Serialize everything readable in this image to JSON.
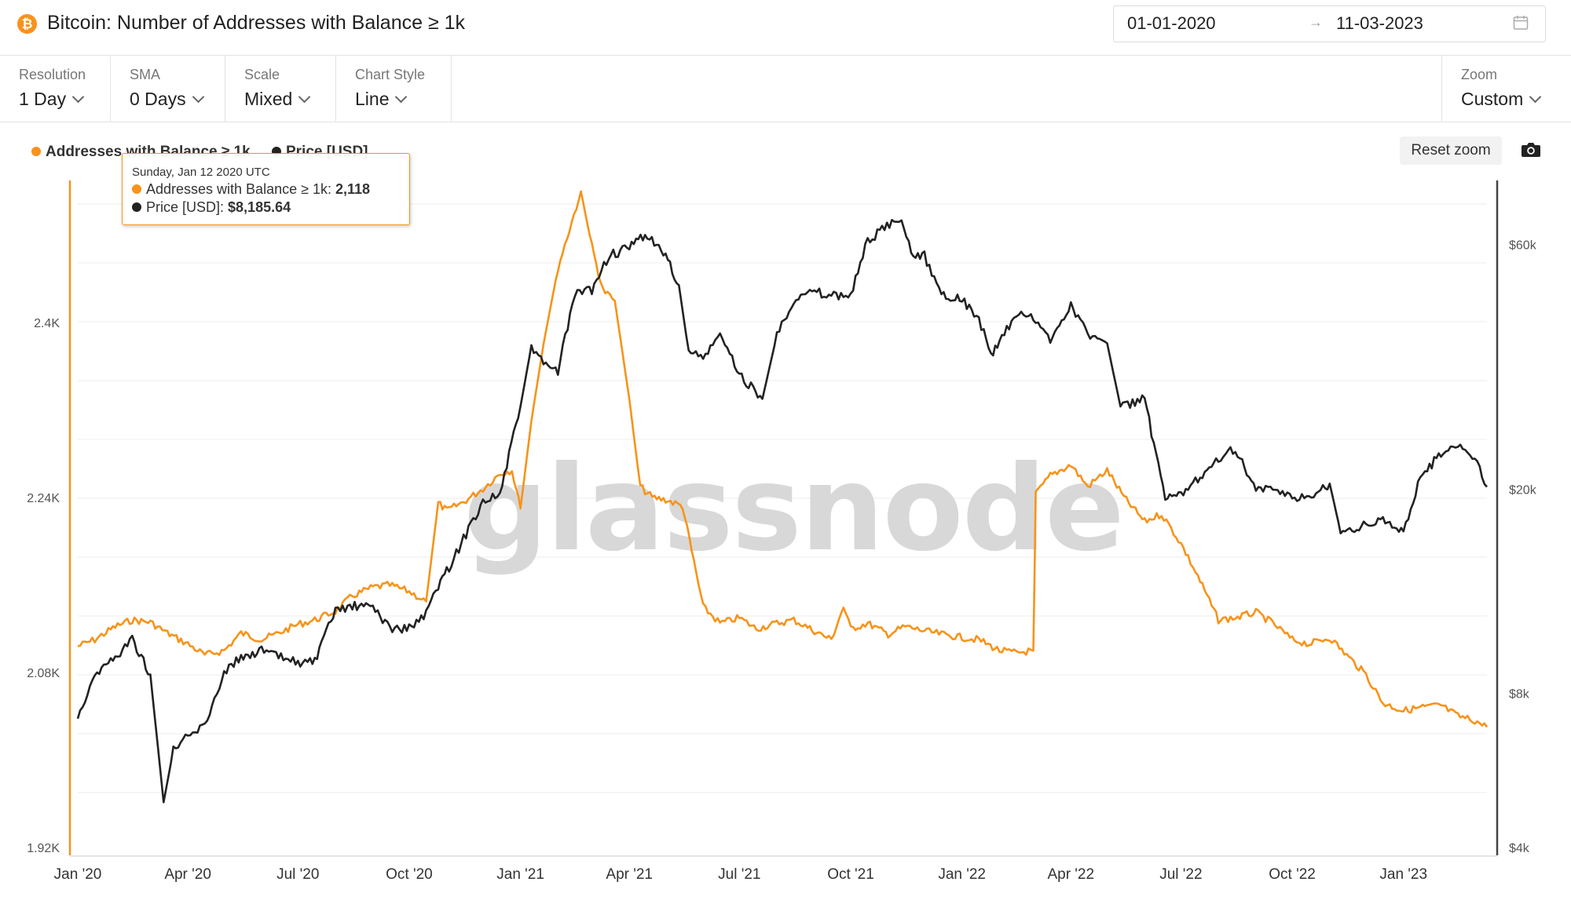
{
  "header": {
    "icon_glyph": "₿",
    "title": "Bitcoin: Number of Addresses with Balance ≥ 1k",
    "date_start": "01-01-2020",
    "date_arrow": "→",
    "date_end": "11-03-2023",
    "calendar_icon": "calendar-icon"
  },
  "toolbar": {
    "controls": [
      {
        "label": "Resolution",
        "value": "1 Day"
      },
      {
        "label": "SMA",
        "value": "0 Days"
      },
      {
        "label": "Scale",
        "value": "Mixed"
      },
      {
        "label": "Chart Style",
        "value": "Line"
      }
    ],
    "zoom": {
      "label": "Zoom",
      "value": "Custom"
    }
  },
  "legend": {
    "addresses": "Addresses with Balance ≥ 1k",
    "price": "Price [USD]"
  },
  "buttons": {
    "reset_zoom": "Reset zoom",
    "camera_icon": "camera-icon"
  },
  "tooltip": {
    "date": "Sunday, Jan 12 2020 UTC",
    "addresses_label": "Addresses with Balance ≥ 1k: ",
    "addresses_value": "2,118",
    "price_label": "Price [USD]: ",
    "price_value": "$8,185.64"
  },
  "watermark": "glassnode",
  "colors": {
    "addresses": "#f7931a",
    "price": "#222222"
  },
  "chart_data": {
    "type": "line",
    "x_axis": {
      "ticks": [
        "Jan '20",
        "Apr '20",
        "Jul '20",
        "Oct '20",
        "Jan '21",
        "Apr '21",
        "Jul '21",
        "Oct '21",
        "Jan '22",
        "Apr '22",
        "Jul '22",
        "Oct '22",
        "Jan '23"
      ]
    },
    "y_left": {
      "ticks": [
        "1.92K",
        "2.08K",
        "2.24K",
        "2.4K"
      ],
      "range": [
        1920,
        2530
      ]
    },
    "y_right": {
      "scale": "log",
      "ticks": [
        "$4k",
        "$8k",
        "$20k",
        "$60k"
      ],
      "range": [
        4000,
        80000
      ]
    },
    "series": [
      {
        "name": "Addresses with Balance ≥ 1k",
        "axis": "left",
        "points": [
          [
            "2020-01-01",
            2104
          ],
          [
            "2020-01-15",
            2110
          ],
          [
            "2020-02-01",
            2122
          ],
          [
            "2020-02-15",
            2128
          ],
          [
            "2020-03-01",
            2126
          ],
          [
            "2020-03-15",
            2116
          ],
          [
            "2020-04-01",
            2106
          ],
          [
            "2020-04-15",
            2096
          ],
          [
            "2020-05-01",
            2100
          ],
          [
            "2020-05-15",
            2116
          ],
          [
            "2020-06-01",
            2110
          ],
          [
            "2020-06-15",
            2116
          ],
          [
            "2020-07-01",
            2124
          ],
          [
            "2020-07-15",
            2128
          ],
          [
            "2020-08-01",
            2136
          ],
          [
            "2020-08-15",
            2150
          ],
          [
            "2020-09-01",
            2158
          ],
          [
            "2020-09-15",
            2160
          ],
          [
            "2020-10-01",
            2154
          ],
          [
            "2020-10-15",
            2145
          ],
          [
            "2020-10-25",
            2235
          ],
          [
            "2020-11-01",
            2228
          ],
          [
            "2020-11-15",
            2236
          ],
          [
            "2020-12-01",
            2248
          ],
          [
            "2020-12-15",
            2262
          ],
          [
            "2020-12-25",
            2265
          ],
          [
            "2021-01-01",
            2230
          ],
          [
            "2021-01-10",
            2310
          ],
          [
            "2021-01-20",
            2380
          ],
          [
            "2021-02-01",
            2450
          ],
          [
            "2021-02-20",
            2520
          ],
          [
            "2021-03-01",
            2470
          ],
          [
            "2021-03-10",
            2430
          ],
          [
            "2021-03-20",
            2420
          ],
          [
            "2021-04-01",
            2330
          ],
          [
            "2021-04-10",
            2250
          ],
          [
            "2021-04-20",
            2240
          ],
          [
            "2021-05-01",
            2238
          ],
          [
            "2021-05-15",
            2232
          ],
          [
            "2021-06-01",
            2140
          ],
          [
            "2021-06-15",
            2125
          ],
          [
            "2021-07-01",
            2130
          ],
          [
            "2021-07-15",
            2120
          ],
          [
            "2021-08-01",
            2125
          ],
          [
            "2021-08-15",
            2128
          ],
          [
            "2021-09-01",
            2118
          ],
          [
            "2021-09-15",
            2110
          ],
          [
            "2021-09-25",
            2140
          ],
          [
            "2021-10-01",
            2120
          ],
          [
            "2021-10-15",
            2125
          ],
          [
            "2021-11-01",
            2115
          ],
          [
            "2021-11-15",
            2122
          ],
          [
            "2021-12-01",
            2118
          ],
          [
            "2021-12-15",
            2115
          ],
          [
            "2022-01-01",
            2112
          ],
          [
            "2022-01-15",
            2110
          ],
          [
            "2022-02-01",
            2100
          ],
          [
            "2022-02-15",
            2098
          ],
          [
            "2022-03-01",
            2100
          ],
          [
            "2022-03-03",
            2243
          ],
          [
            "2022-03-15",
            2260
          ],
          [
            "2022-04-01",
            2270
          ],
          [
            "2022-04-15",
            2250
          ],
          [
            "2022-05-01",
            2265
          ],
          [
            "2022-05-15",
            2240
          ],
          [
            "2022-06-01",
            2218
          ],
          [
            "2022-06-15",
            2225
          ],
          [
            "2022-07-01",
            2198
          ],
          [
            "2022-07-15",
            2168
          ],
          [
            "2022-08-01",
            2128
          ],
          [
            "2022-08-15",
            2130
          ],
          [
            "2022-09-01",
            2135
          ],
          [
            "2022-09-15",
            2125
          ],
          [
            "2022-10-01",
            2110
          ],
          [
            "2022-10-15",
            2106
          ],
          [
            "2022-11-01",
            2112
          ],
          [
            "2022-11-15",
            2096
          ],
          [
            "2022-12-01",
            2078
          ],
          [
            "2022-12-15",
            2052
          ],
          [
            "2023-01-01",
            2045
          ],
          [
            "2023-01-15",
            2048
          ],
          [
            "2023-02-01",
            2050
          ],
          [
            "2023-02-15",
            2040
          ],
          [
            "2023-03-01",
            2036
          ],
          [
            "2023-03-11",
            2030
          ]
        ]
      },
      {
        "name": "Price [USD]",
        "axis": "right",
        "points": [
          [
            "2020-01-01",
            7200
          ],
          [
            "2020-01-15",
            8700
          ],
          [
            "2020-02-01",
            9400
          ],
          [
            "2020-02-15",
            10200
          ],
          [
            "2020-03-01",
            8700
          ],
          [
            "2020-03-12",
            4900
          ],
          [
            "2020-03-20",
            6200
          ],
          [
            "2020-04-01",
            6600
          ],
          [
            "2020-04-15",
            6900
          ],
          [
            "2020-05-01",
            8800
          ],
          [
            "2020-05-15",
            9400
          ],
          [
            "2020-06-01",
            9700
          ],
          [
            "2020-06-15",
            9400
          ],
          [
            "2020-07-01",
            9200
          ],
          [
            "2020-07-15",
            9200
          ],
          [
            "2020-08-01",
            11600
          ],
          [
            "2020-08-15",
            11800
          ],
          [
            "2020-09-01",
            11800
          ],
          [
            "2020-09-15",
            10700
          ],
          [
            "2020-10-01",
            10700
          ],
          [
            "2020-10-15",
            11400
          ],
          [
            "2020-10-25",
            13000
          ],
          [
            "2020-11-01",
            13800
          ],
          [
            "2020-11-15",
            16000
          ],
          [
            "2020-12-01",
            19000
          ],
          [
            "2020-12-15",
            19500
          ],
          [
            "2021-01-01",
            29000
          ],
          [
            "2021-01-10",
            38000
          ],
          [
            "2021-01-20",
            35000
          ],
          [
            "2021-02-01",
            34000
          ],
          [
            "2021-02-15",
            48000
          ],
          [
            "2021-03-01",
            49000
          ],
          [
            "2021-03-15",
            57000
          ],
          [
            "2021-04-01",
            59000
          ],
          [
            "2021-04-14",
            63000
          ],
          [
            "2021-05-01",
            57000
          ],
          [
            "2021-05-12",
            50000
          ],
          [
            "2021-05-20",
            37000
          ],
          [
            "2021-06-01",
            36000
          ],
          [
            "2021-06-15",
            40000
          ],
          [
            "2021-07-01",
            33500
          ],
          [
            "2021-07-20",
            30000
          ],
          [
            "2021-08-01",
            40000
          ],
          [
            "2021-08-15",
            47000
          ],
          [
            "2021-09-01",
            48500
          ],
          [
            "2021-09-15",
            47500
          ],
          [
            "2021-10-01",
            48000
          ],
          [
            "2021-10-15",
            61000
          ],
          [
            "2021-11-10",
            67500
          ],
          [
            "2021-11-20",
            58000
          ],
          [
            "2021-12-01",
            57000
          ],
          [
            "2021-12-15",
            48000
          ],
          [
            "2022-01-01",
            47000
          ],
          [
            "2022-01-15",
            43000
          ],
          [
            "2022-01-25",
            36500
          ],
          [
            "2022-02-01",
            38500
          ],
          [
            "2022-02-15",
            44000
          ],
          [
            "2022-03-01",
            43000
          ],
          [
            "2022-03-15",
            39000
          ],
          [
            "2022-04-01",
            46000
          ],
          [
            "2022-04-15",
            40000
          ],
          [
            "2022-05-01",
            38500
          ],
          [
            "2022-05-12",
            29000
          ],
          [
            "2022-06-01",
            30000
          ],
          [
            "2022-06-18",
            19000
          ],
          [
            "2022-07-01",
            19500
          ],
          [
            "2022-07-15",
            21000
          ],
          [
            "2022-08-01",
            23000
          ],
          [
            "2022-08-15",
            24000
          ],
          [
            "2022-09-01",
            20000
          ],
          [
            "2022-09-15",
            19800
          ],
          [
            "2022-10-01",
            19300
          ],
          [
            "2022-10-15",
            19200
          ],
          [
            "2022-11-01",
            20500
          ],
          [
            "2022-11-10",
            16500
          ],
          [
            "2022-12-01",
            17000
          ],
          [
            "2022-12-15",
            17300
          ],
          [
            "2023-01-01",
            16600
          ],
          [
            "2023-01-15",
            21000
          ],
          [
            "2023-02-01",
            23500
          ],
          [
            "2023-02-15",
            24500
          ],
          [
            "2023-03-01",
            23000
          ],
          [
            "2023-03-11",
            20200
          ]
        ]
      }
    ]
  }
}
